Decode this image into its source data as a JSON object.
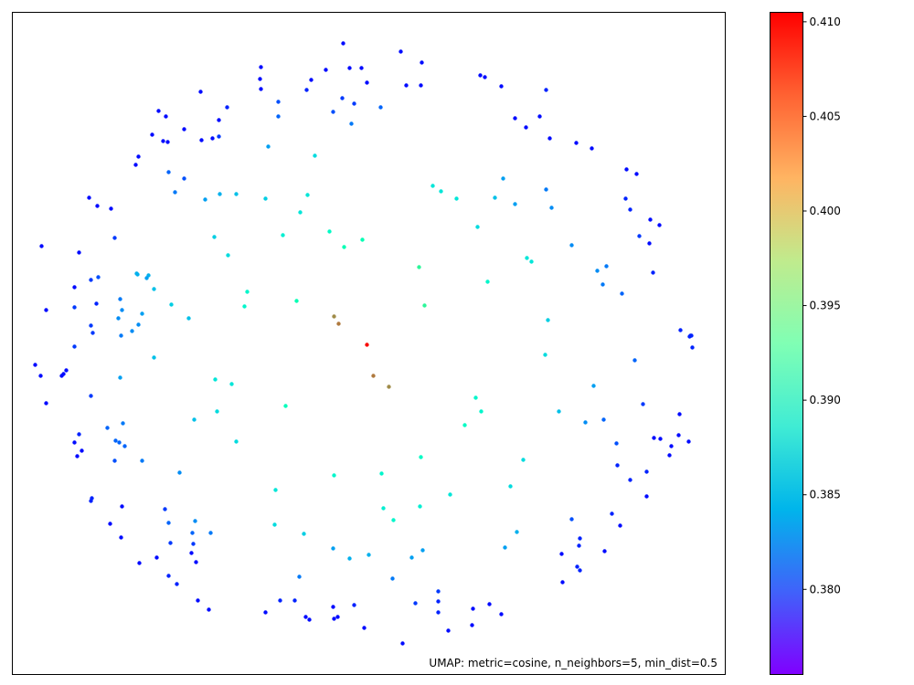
{
  "chart_data": {
    "type": "scatter",
    "annotation": "UMAP: metric=cosine, n_neighbors=5, min_dist=0.5",
    "colorbar": {
      "colormap": "rainbow",
      "range": [
        0.3755,
        0.4105
      ],
      "ticks": [
        0.38,
        0.385,
        0.39,
        0.395,
        0.4,
        0.405,
        0.41
      ],
      "tick_labels": [
        "0.380",
        "0.385",
        "0.390",
        "0.395",
        "0.400",
        "0.405",
        "0.410"
      ]
    },
    "axes": {
      "xlim": [
        0,
        780
      ],
      "ylim": [
        0,
        725
      ],
      "ticks_visible": false,
      "grid": false
    },
    "points": [
      [
        362,
        34,
        0.376
      ],
      [
        425,
        43,
        0.376
      ],
      [
        448,
        55,
        0.376
      ],
      [
        272,
        60,
        0.376
      ],
      [
        343,
        63,
        0.376
      ],
      [
        369,
        61,
        0.376
      ],
      [
        382,
        61,
        0.376
      ],
      [
        512,
        69,
        0.376
      ],
      [
        517,
        71,
        0.376
      ],
      [
        327,
        74,
        0.376
      ],
      [
        271,
        73,
        0.376
      ],
      [
        388,
        77,
        0.376
      ],
      [
        431,
        80,
        0.376
      ],
      [
        447,
        80,
        0.376
      ],
      [
        535,
        81,
        0.376
      ],
      [
        322,
        85,
        0.377
      ],
      [
        584,
        85,
        0.377
      ],
      [
        272,
        84,
        0.376
      ],
      [
        206,
        87,
        0.376
      ],
      [
        361,
        94,
        0.378
      ],
      [
        291,
        98,
        0.379
      ],
      [
        403,
        104,
        0.38
      ],
      [
        374,
        100,
        0.378
      ],
      [
        351,
        109,
        0.379
      ],
      [
        235,
        104,
        0.377
      ],
      [
        160,
        108,
        0.376
      ],
      [
        168,
        114,
        0.376
      ],
      [
        226,
        118,
        0.376
      ],
      [
        291,
        114,
        0.38
      ],
      [
        371,
        122,
        0.381
      ],
      [
        550,
        116,
        0.376
      ],
      [
        577,
        114,
        0.376
      ],
      [
        562,
        126,
        0.376
      ],
      [
        188,
        128,
        0.376
      ],
      [
        153,
        134,
        0.376
      ],
      [
        219,
        138,
        0.376
      ],
      [
        165,
        141,
        0.376
      ],
      [
        170,
        142,
        0.376
      ],
      [
        207,
        140,
        0.376
      ],
      [
        226,
        136,
        0.378
      ],
      [
        588,
        138,
        0.376
      ],
      [
        617,
        143,
        0.376
      ],
      [
        634,
        149,
        0.376
      ],
      [
        280,
        147,
        0.383
      ],
      [
        138,
        158,
        0.376
      ],
      [
        331,
        157,
        0.387
      ],
      [
        135,
        167,
        0.376
      ],
      [
        171,
        175,
        0.38
      ],
      [
        672,
        172,
        0.376
      ],
      [
        683,
        177,
        0.376
      ],
      [
        188,
        182,
        0.379
      ],
      [
        537,
        182,
        0.383
      ],
      [
        460,
        190,
        0.388
      ],
      [
        469,
        196,
        0.388
      ],
      [
        178,
        197,
        0.381
      ],
      [
        584,
        194,
        0.381
      ],
      [
        227,
        199,
        0.384
      ],
      [
        245,
        199,
        0.385
      ],
      [
        323,
        200,
        0.388
      ],
      [
        528,
        203,
        0.385
      ],
      [
        486,
        204,
        0.388
      ],
      [
        211,
        205,
        0.383
      ],
      [
        277,
        204,
        0.386
      ],
      [
        84,
        203,
        0.376
      ],
      [
        671,
        204,
        0.377
      ],
      [
        93,
        212,
        0.376
      ],
      [
        108,
        215,
        0.376
      ],
      [
        550,
        210,
        0.383
      ],
      [
        590,
        214,
        0.382
      ],
      [
        315,
        219,
        0.388
      ],
      [
        676,
        216,
        0.377
      ],
      [
        698,
        227,
        0.376
      ],
      [
        509,
        235,
        0.387
      ],
      [
        708,
        233,
        0.376
      ],
      [
        347,
        240,
        0.391
      ],
      [
        221,
        246,
        0.386
      ],
      [
        383,
        249,
        0.393
      ],
      [
        686,
        245,
        0.378
      ],
      [
        112,
        247,
        0.378
      ],
      [
        296,
        244,
        0.389
      ],
      [
        32,
        256,
        0.376
      ],
      [
        697,
        253,
        0.376
      ],
      [
        363,
        257,
        0.393
      ],
      [
        612,
        255,
        0.382
      ],
      [
        73,
        263,
        0.376
      ],
      [
        236,
        266,
        0.387
      ],
      [
        563,
        269,
        0.388
      ],
      [
        568,
        273,
        0.388
      ],
      [
        445,
        279,
        0.396
      ],
      [
        650,
        278,
        0.381
      ],
      [
        94,
        290,
        0.379
      ],
      [
        640,
        283,
        0.382
      ],
      [
        136,
        286,
        0.384
      ],
      [
        137,
        287,
        0.384
      ],
      [
        149,
        288,
        0.384
      ],
      [
        701,
        285,
        0.377
      ],
      [
        86,
        293,
        0.378
      ],
      [
        147,
        291,
        0.383
      ],
      [
        520,
        295,
        0.39
      ],
      [
        155,
        303,
        0.385
      ],
      [
        646,
        298,
        0.381
      ],
      [
        68,
        301,
        0.376
      ],
      [
        257,
        306,
        0.39
      ],
      [
        118,
        314,
        0.381
      ],
      [
        667,
        308,
        0.38
      ],
      [
        174,
        320,
        0.386
      ],
      [
        311,
        316,
        0.393
      ],
      [
        254,
        322,
        0.39
      ],
      [
        451,
        321,
        0.396
      ],
      [
        68,
        323,
        0.378
      ],
      [
        92,
        319,
        0.377
      ],
      [
        37,
        326,
        0.376
      ],
      [
        120,
        326,
        0.382
      ],
      [
        142,
        330,
        0.383
      ],
      [
        352,
        333,
        0.404
      ],
      [
        116,
        335,
        0.382
      ],
      [
        193,
        335,
        0.385
      ],
      [
        586,
        337,
        0.386
      ],
      [
        86,
        343,
        0.378
      ],
      [
        138,
        342,
        0.382
      ],
      [
        357,
        341,
        0.405
      ],
      [
        131,
        349,
        0.382
      ],
      [
        88,
        351,
        0.378
      ],
      [
        119,
        354,
        0.381
      ],
      [
        731,
        348,
        0.377
      ],
      [
        743,
        354,
        0.377
      ],
      [
        742,
        354,
        0.377
      ],
      [
        741,
        355,
        0.377
      ],
      [
        388,
        364,
        0.41
      ],
      [
        68,
        366,
        0.378
      ],
      [
        744,
        367,
        0.377
      ],
      [
        583,
        375,
        0.387
      ],
      [
        155,
        378,
        0.385
      ],
      [
        681,
        381,
        0.38
      ],
      [
        25,
        386,
        0.376
      ],
      [
        59,
        392,
        0.376
      ],
      [
        56,
        396,
        0.376
      ],
      [
        118,
        400,
        0.383
      ],
      [
        395,
        398,
        0.405
      ],
      [
        31,
        398,
        0.376
      ],
      [
        54,
        398,
        0.376
      ],
      [
        222,
        402,
        0.388
      ],
      [
        240,
        407,
        0.388
      ],
      [
        412,
        410,
        0.404
      ],
      [
        86,
        420,
        0.378
      ],
      [
        636,
        409,
        0.383
      ],
      [
        507,
        422,
        0.39
      ],
      [
        299,
        431,
        0.392
      ],
      [
        37,
        428,
        0.376
      ],
      [
        690,
        429,
        0.378
      ],
      [
        513,
        437,
        0.39
      ],
      [
        224,
        437,
        0.387
      ],
      [
        598,
        437,
        0.385
      ],
      [
        730,
        440,
        0.376
      ],
      [
        199,
        446,
        0.385
      ],
      [
        647,
        446,
        0.38
      ],
      [
        121,
        450,
        0.381
      ],
      [
        495,
        452,
        0.391
      ],
      [
        104,
        455,
        0.38
      ],
      [
        627,
        449,
        0.382
      ],
      [
        73,
        462,
        0.377
      ],
      [
        68,
        471,
        0.376
      ],
      [
        113,
        469,
        0.38
      ],
      [
        117,
        471,
        0.38
      ],
      [
        661,
        472,
        0.379
      ],
      [
        702,
        466,
        0.376
      ],
      [
        729,
        463,
        0.376
      ],
      [
        709,
        467,
        0.376
      ],
      [
        721,
        475,
        0.376
      ],
      [
        740,
        470,
        0.376
      ],
      [
        245,
        470,
        0.387
      ],
      [
        123,
        475,
        0.38
      ],
      [
        76,
        480,
        0.376
      ],
      [
        71,
        486,
        0.376
      ],
      [
        719,
        485,
        0.376
      ],
      [
        447,
        487,
        0.391
      ],
      [
        112,
        491,
        0.379
      ],
      [
        142,
        491,
        0.381
      ],
      [
        559,
        490,
        0.387
      ],
      [
        662,
        496,
        0.377
      ],
      [
        694,
        503,
        0.377
      ],
      [
        183,
        504,
        0.382
      ],
      [
        404,
        505,
        0.39
      ],
      [
        352,
        507,
        0.39
      ],
      [
        676,
        512,
        0.377
      ],
      [
        545,
        519,
        0.387
      ],
      [
        288,
        523,
        0.388
      ],
      [
        87,
        532,
        0.377
      ],
      [
        479,
        528,
        0.388
      ],
      [
        86,
        535,
        0.377
      ],
      [
        694,
        530,
        0.376
      ],
      [
        446,
        541,
        0.389
      ],
      [
        120,
        541,
        0.376
      ],
      [
        167,
        544,
        0.378
      ],
      [
        406,
        543,
        0.389
      ],
      [
        417,
        556,
        0.39
      ],
      [
        200,
        557,
        0.382
      ],
      [
        171,
        559,
        0.38
      ],
      [
        287,
        561,
        0.387
      ],
      [
        107,
        560,
        0.376
      ],
      [
        612,
        555,
        0.379
      ],
      [
        656,
        549,
        0.377
      ],
      [
        665,
        562,
        0.376
      ],
      [
        319,
        571,
        0.386
      ],
      [
        119,
        575,
        0.376
      ],
      [
        217,
        570,
        0.381
      ],
      [
        197,
        570,
        0.38
      ],
      [
        552,
        569,
        0.384
      ],
      [
        621,
        576,
        0.377
      ],
      [
        173,
        581,
        0.378
      ],
      [
        198,
        582,
        0.378
      ],
      [
        351,
        587,
        0.383
      ],
      [
        449,
        589,
        0.383
      ],
      [
        648,
        590,
        0.376
      ],
      [
        539,
        586,
        0.383
      ],
      [
        620,
        584,
        0.377
      ],
      [
        196,
        592,
        0.376
      ],
      [
        601,
        593,
        0.376
      ],
      [
        158,
        597,
        0.376
      ],
      [
        437,
        597,
        0.383
      ],
      [
        390,
        594,
        0.384
      ],
      [
        201,
        602,
        0.376
      ],
      [
        369,
        598,
        0.384
      ],
      [
        618,
        607,
        0.377
      ],
      [
        139,
        603,
        0.376
      ],
      [
        621,
        611,
        0.377
      ],
      [
        171,
        617,
        0.377
      ],
      [
        314,
        618,
        0.381
      ],
      [
        416,
        620,
        0.381
      ],
      [
        180,
        626,
        0.377
      ],
      [
        602,
        624,
        0.376
      ],
      [
        466,
        634,
        0.378
      ],
      [
        309,
        644,
        0.377
      ],
      [
        293,
        644,
        0.377
      ],
      [
        203,
        644,
        0.376
      ],
      [
        466,
        645,
        0.377
      ],
      [
        374,
        649,
        0.377
      ],
      [
        522,
        648,
        0.376
      ],
      [
        441,
        647,
        0.378
      ],
      [
        351,
        651,
        0.376
      ],
      [
        504,
        653,
        0.376
      ],
      [
        215,
        654,
        0.376
      ],
      [
        277,
        657,
        0.376
      ],
      [
        321,
        662,
        0.376
      ],
      [
        466,
        657,
        0.377
      ],
      [
        352,
        664,
        0.376
      ],
      [
        356,
        662,
        0.376
      ],
      [
        535,
        659,
        0.376
      ],
      [
        325,
        665,
        0.376
      ],
      [
        503,
        671,
        0.376
      ],
      [
        385,
        674,
        0.376
      ],
      [
        477,
        677,
        0.376
      ],
      [
        427,
        691,
        0.376
      ]
    ]
  }
}
